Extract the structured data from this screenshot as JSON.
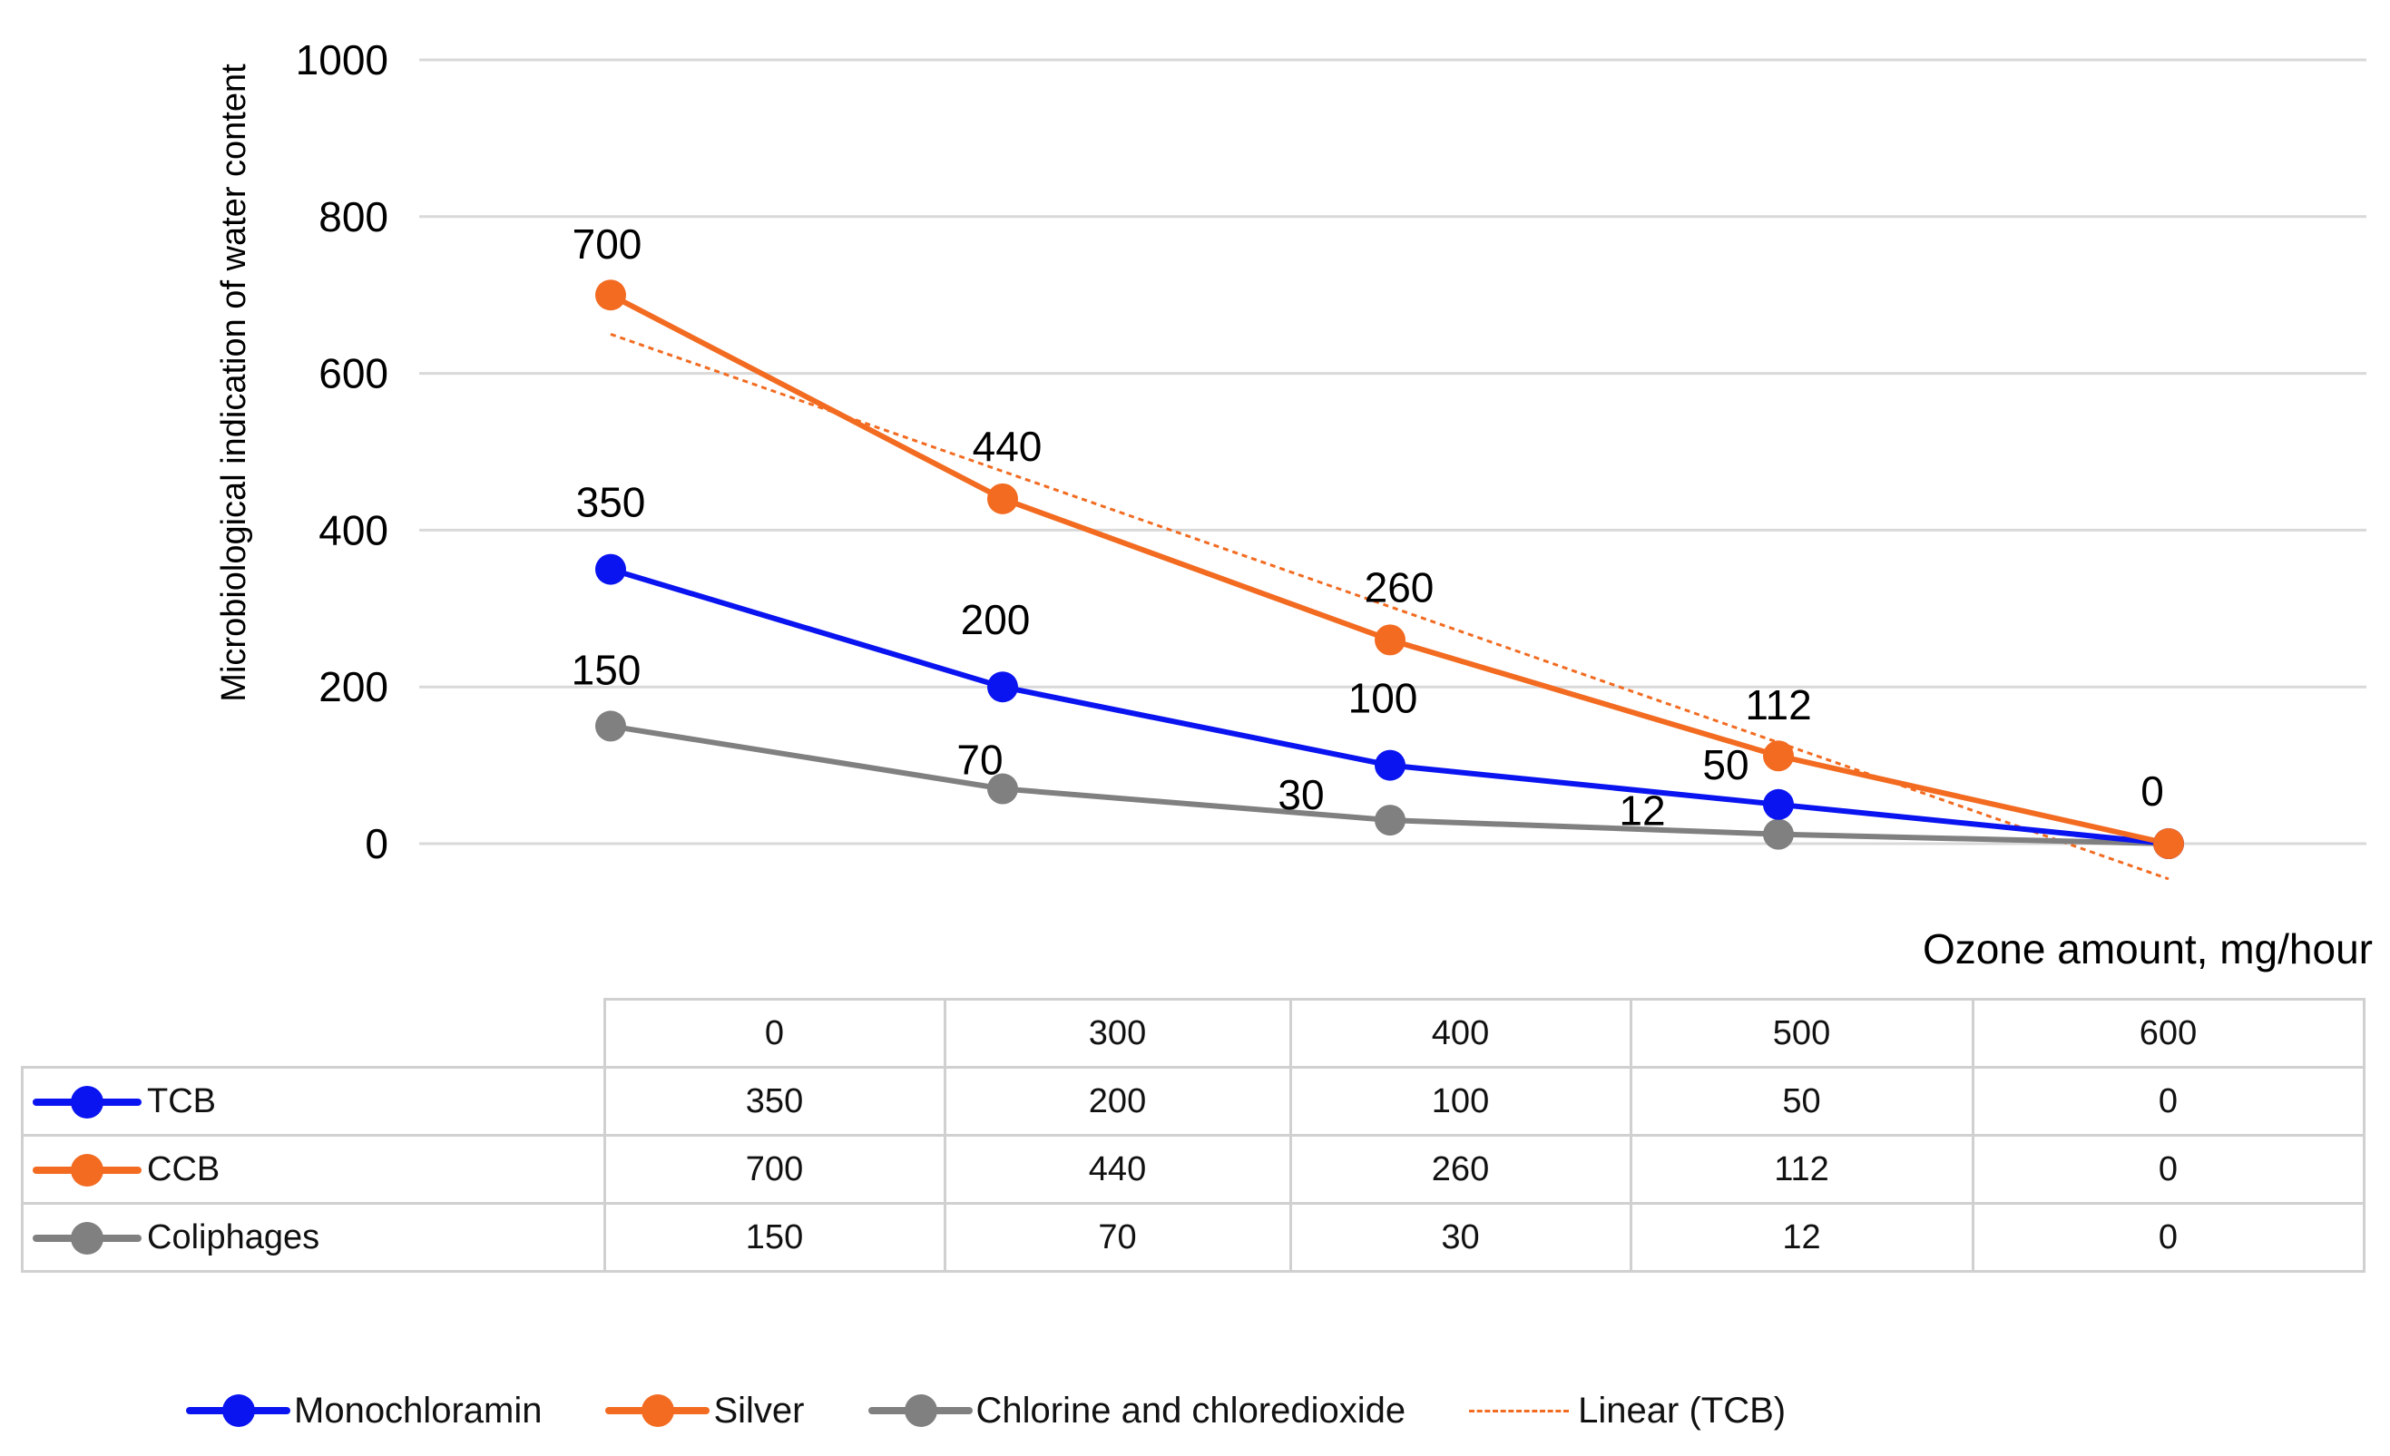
{
  "chart_data": {
    "type": "line",
    "ylabel": "Microbiological indication of water content",
    "xlabel": "Ozone amount, mg/hour",
    "ylim": [
      0,
      1000
    ],
    "yticks": [
      0,
      200,
      400,
      600,
      800,
      1000
    ],
    "categories": [
      "0",
      "300",
      "400",
      "500",
      "600"
    ],
    "series": [
      {
        "name": "TCB",
        "legend_name": "Monochloramin",
        "color": "#0A14F0",
        "values": [
          350,
          200,
          100,
          50,
          0
        ]
      },
      {
        "name": "CCB",
        "legend_name": "Silver",
        "color": "#F26B21",
        "values": [
          700,
          440,
          260,
          112,
          0
        ]
      },
      {
        "name": "Coliphages",
        "legend_name": "Chlorine and chloredioxide",
        "color": "#808080",
        "values": [
          150,
          70,
          30,
          12,
          0
        ]
      }
    ],
    "trendline": {
      "name": "Linear (TCB)",
      "color": "#F26B21",
      "style": "dotted",
      "start_value": 650,
      "end_value": -45
    }
  }
}
